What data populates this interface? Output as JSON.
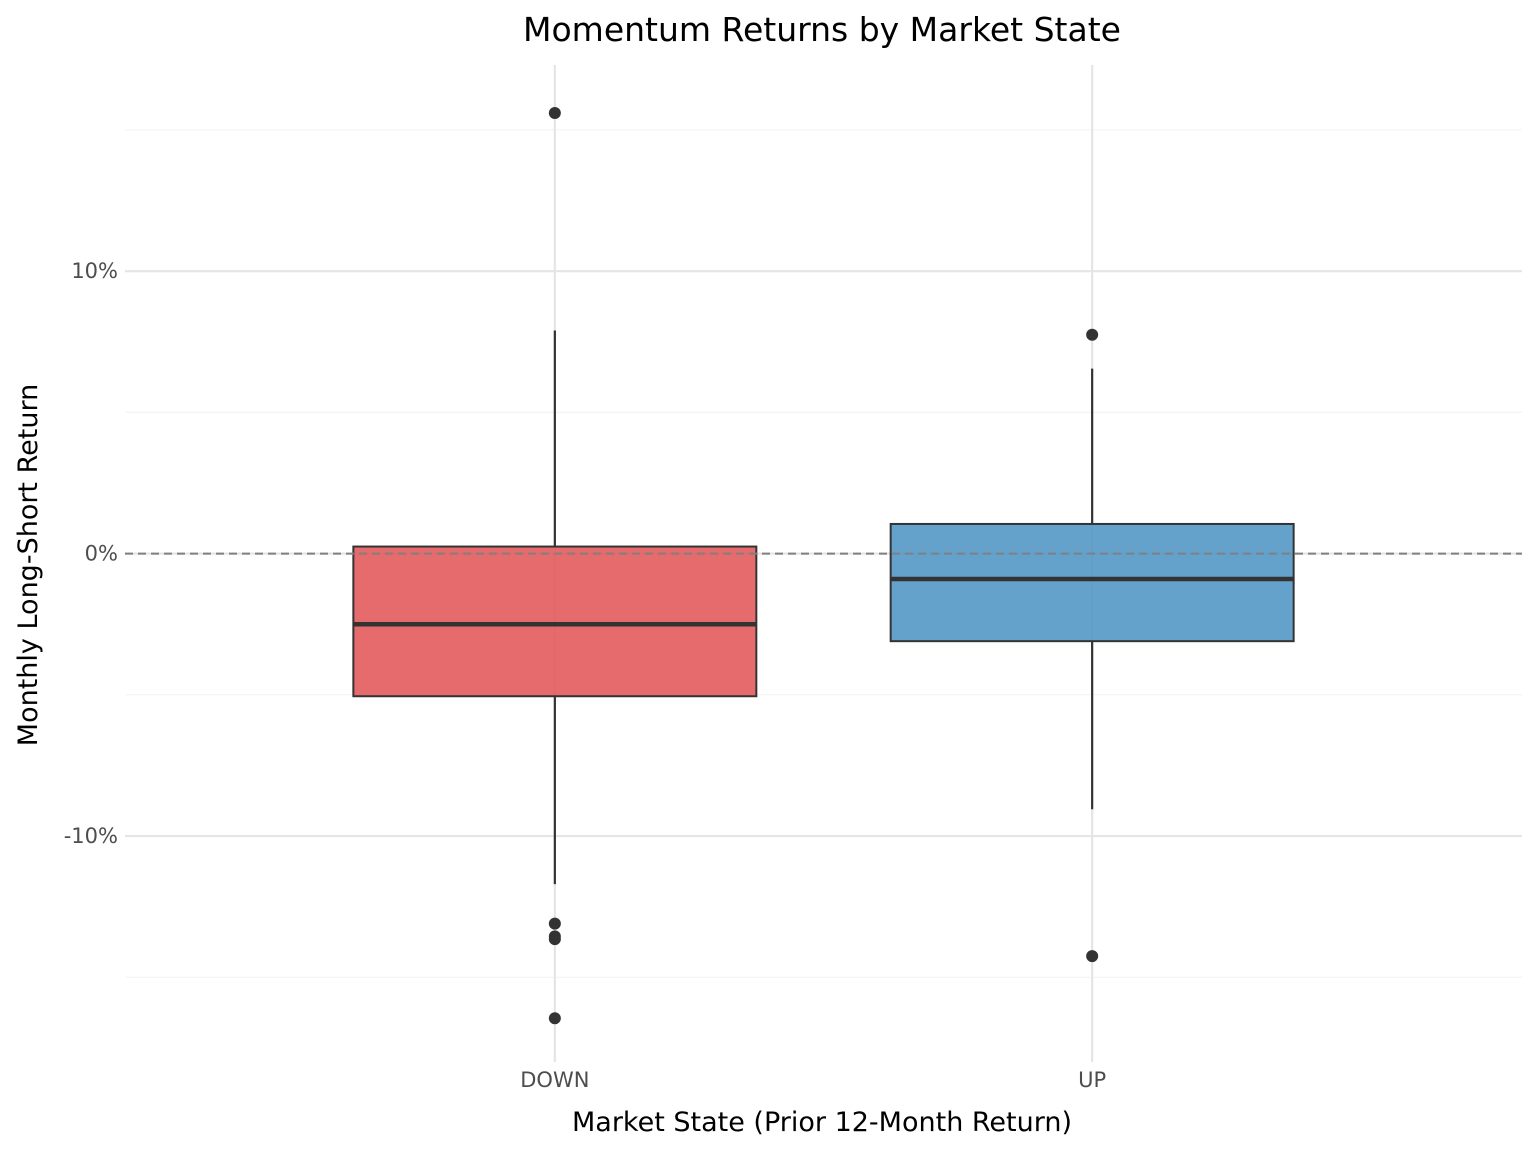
{
  "chart_data": {
    "type": "boxplot",
    "title": "Momentum Returns by Market State",
    "xlabel": "Market State (Prior 12-Month Return)",
    "ylabel": "Monthly Long-Short Return",
    "categories": [
      "DOWN",
      "UP"
    ],
    "ylim": [
      -0.18,
      0.173
    ],
    "y_ticks": [
      -0.1,
      0.0,
      0.1
    ],
    "y_tick_labels": [
      "-10%",
      "0%",
      "10%"
    ],
    "y_minor_ticks": [
      -0.15,
      -0.05,
      0.05,
      0.15
    ],
    "grid": true,
    "reference_line": {
      "y": 0.0,
      "style": "dashed",
      "color": "#808080"
    },
    "boxes": [
      {
        "category": "DOWN",
        "color": "#e15759",
        "whisker_low": -0.117,
        "q1": -0.0505,
        "median": -0.025,
        "q3": 0.0025,
        "whisker_high": 0.079,
        "outliers": [
          0.156,
          -0.131,
          -0.1355,
          -0.1365,
          -0.1645
        ]
      },
      {
        "category": "UP",
        "color": "#4e95c5",
        "whisker_low": -0.0905,
        "q1": -0.031,
        "median": -0.009,
        "q3": 0.0105,
        "whisker_high": 0.0655,
        "outliers": [
          0.0775,
          -0.1425
        ]
      }
    ]
  }
}
